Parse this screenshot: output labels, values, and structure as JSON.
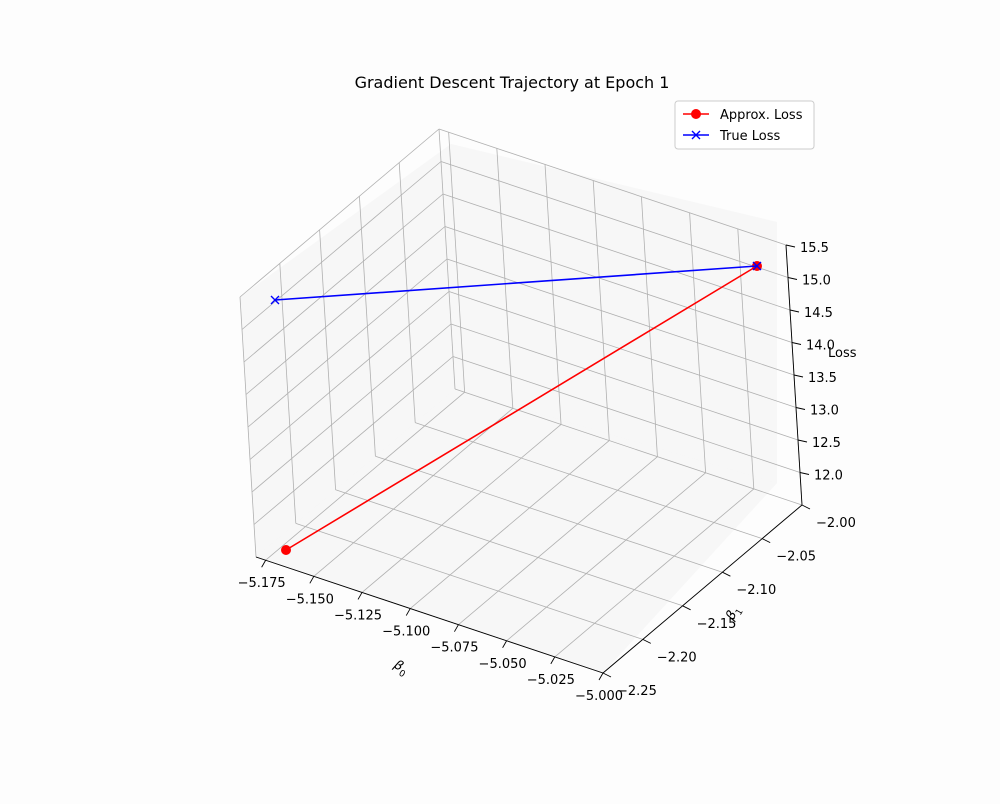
{
  "chart_data": {
    "type": "line3d",
    "title": "Gradient Descent Trajectory at Epoch 1",
    "xlabel": "β0",
    "xlabel_base": "β",
    "xlabel_sub": "0",
    "ylabel": "β1",
    "ylabel_base": "β",
    "ylabel_sub": "1",
    "zlabel": "Loss",
    "x_ticks": [
      "−5.175",
      "−5.150",
      "−5.125",
      "−5.100",
      "−5.075",
      "−5.050",
      "−5.025",
      "−5.000"
    ],
    "y_ticks": [
      "−2.25",
      "−2.20",
      "−2.15",
      "−2.10",
      "−2.05",
      "−2.00"
    ],
    "z_ticks": [
      "12.0",
      "12.5",
      "13.0",
      "13.5",
      "14.0",
      "14.5",
      "15.0",
      "15.5"
    ],
    "grid": true,
    "legend_position": "top-right",
    "series": [
      {
        "name": "Approx. Loss",
        "color": "#ff0000",
        "marker": "circle",
        "points": [
          {
            "x": -5.163,
            "y": -2.24,
            "z": 12.0
          },
          {
            "x": -5.0,
            "y": -2.0,
            "z": 15.07
          }
        ]
      },
      {
        "name": "True Loss",
        "color": "#0000ff",
        "marker": "x",
        "points": [
          {
            "x": -5.163,
            "y": -2.24,
            "z": 15.5
          },
          {
            "x": -5.0,
            "y": -2.0,
            "z": 15.07
          }
        ]
      }
    ]
  }
}
